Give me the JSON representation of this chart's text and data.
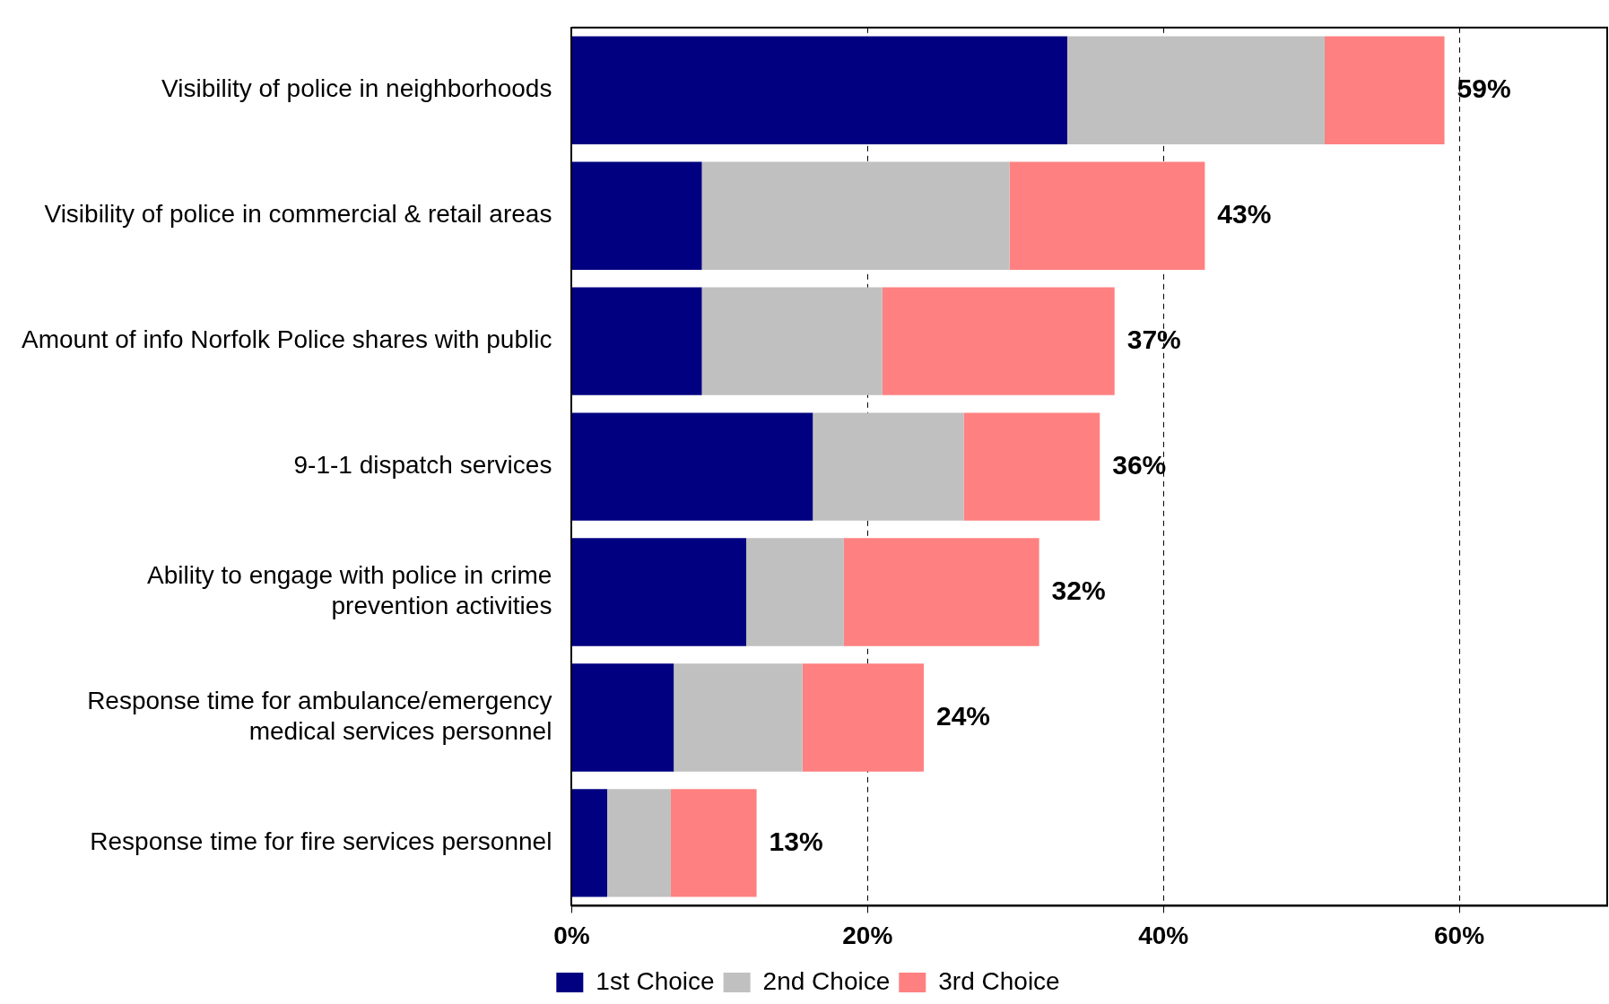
{
  "chart_data": {
    "type": "bar",
    "orientation": "horizontal",
    "stacked": true,
    "categories": [
      "Visibility of police in neighborhoods",
      "Visibility of police in commercial & retail areas",
      "Amount of info Norfolk Police shares with public",
      "9-1-1 dispatch services",
      "Ability to engage with police in crime prevention activities",
      "Response time for ambulance/emergency medical services personnel",
      "Response time for fire services personnel"
    ],
    "series": [
      {
        "name": "1st Choice",
        "color": "#000080",
        "values": [
          33.5,
          8.8,
          8.8,
          16.3,
          11.8,
          6.9,
          2.4
        ]
      },
      {
        "name": "2nd Choice",
        "color": "#c0c0c0",
        "values": [
          17.4,
          20.8,
          12.2,
          10.2,
          6.6,
          8.7,
          4.3
        ]
      },
      {
        "name": "3rd Choice",
        "color": "#ff8080",
        "values": [
          8.1,
          13.2,
          15.7,
          9.2,
          13.2,
          8.2,
          5.8
        ]
      }
    ],
    "totals": [
      "59%",
      "43%",
      "37%",
      "36%",
      "32%",
      "24%",
      "13%"
    ],
    "xlim": [
      0,
      70
    ],
    "xticks": [
      {
        "value": 0,
        "label": "0%"
      },
      {
        "value": 20,
        "label": "20%"
      },
      {
        "value": 40,
        "label": "40%"
      },
      {
        "value": 60,
        "label": "60%"
      }
    ],
    "grid": "x",
    "legend": "bottom"
  }
}
